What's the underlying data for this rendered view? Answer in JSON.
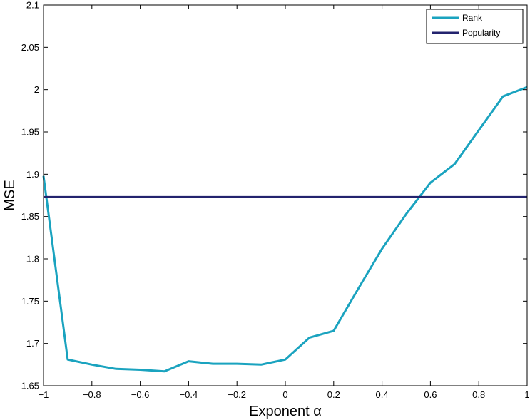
{
  "chart_data": {
    "type": "line",
    "title": "",
    "xlabel": "Exponent α",
    "ylabel": "MSE",
    "xlim": [
      -1,
      1
    ],
    "ylim": [
      1.65,
      2.1
    ],
    "grid": false,
    "legend_position": "top-right",
    "x_ticks": [
      -1,
      -0.8,
      -0.6,
      -0.4,
      -0.2,
      0,
      0.2,
      0.4,
      0.6,
      0.8,
      1
    ],
    "x_tick_labels": [
      "−1",
      "−0.8",
      "−0.6",
      "−0.4",
      "−0.2",
      "0",
      "0.2",
      "0.4",
      "0.6",
      "0.8",
      "1"
    ],
    "y_ticks": [
      1.65,
      1.7,
      1.75,
      1.8,
      1.85,
      1.9,
      1.95,
      2.0,
      2.05,
      2.1
    ],
    "y_tick_labels": [
      "1.65",
      "1.7",
      "1.75",
      "1.8",
      "1.85",
      "1.9",
      "1.95",
      "2",
      "2.05",
      "2.1"
    ],
    "series": [
      {
        "name": "Rank",
        "color": "#1aa3bf",
        "x": [
          -1,
          -0.9,
          -0.8,
          -0.7,
          -0.6,
          -0.5,
          -0.4,
          -0.3,
          -0.2,
          -0.1,
          0,
          0.1,
          0.2,
          0.3,
          0.4,
          0.5,
          0.6,
          0.7,
          0.8,
          0.9,
          1
        ],
        "y": [
          1.898,
          1.681,
          1.675,
          1.67,
          1.669,
          1.667,
          1.679,
          1.676,
          1.676,
          1.675,
          1.681,
          1.707,
          1.715,
          1.764,
          1.812,
          1.853,
          1.89,
          1.912,
          1.952,
          1.992,
          2.003
        ]
      },
      {
        "name": "Popularity",
        "color": "#23236e",
        "x": [
          -1,
          1
        ],
        "y": [
          1.873,
          1.873
        ]
      }
    ]
  }
}
